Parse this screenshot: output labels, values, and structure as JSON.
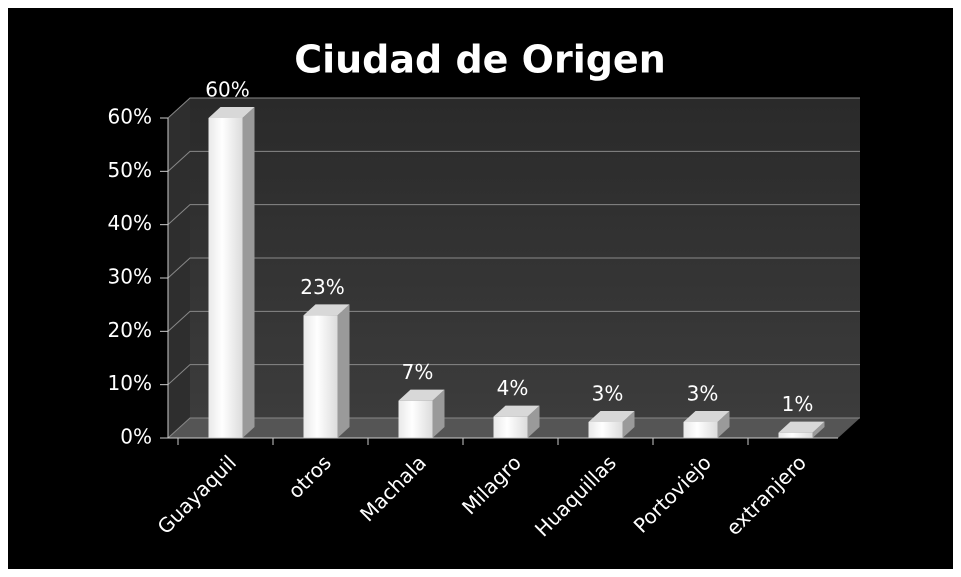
{
  "chart_data": {
    "type": "bar",
    "title": "Ciudad de Origen",
    "categories": [
      "Guayaquil",
      "otros",
      "Machala",
      "Milagro",
      "Huaquillas",
      "Portoviejo",
      "extranjero"
    ],
    "values": [
      60,
      23,
      7,
      4,
      3,
      3,
      1
    ],
    "value_labels": [
      "60%",
      "23%",
      "7%",
      "4%",
      "3%",
      "3%",
      "1%"
    ],
    "color": "#ffffff",
    "ylim": [
      0,
      60
    ],
    "yticks": [
      {
        "value": 0,
        "label": "0%"
      },
      {
        "value": 10,
        "label": "10%"
      },
      {
        "value": 20,
        "label": "20%"
      },
      {
        "value": 30,
        "label": "30%"
      },
      {
        "value": 40,
        "label": "40%"
      },
      {
        "value": 50,
        "label": "50%"
      },
      {
        "value": 60,
        "label": "60%"
      }
    ],
    "grid": true
  }
}
